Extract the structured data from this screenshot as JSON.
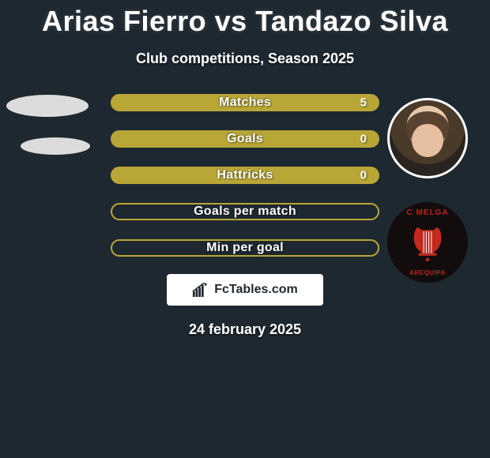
{
  "title": "Arias Fierro vs Tandazo Silva",
  "subtitle": "Club competitions, Season 2025",
  "stats": [
    {
      "label": "Matches",
      "right_value": "5",
      "filled": true
    },
    {
      "label": "Goals",
      "right_value": "0",
      "filled": true
    },
    {
      "label": "Hattricks",
      "right_value": "0",
      "filled": true
    },
    {
      "label": "Goals per match",
      "right_value": "",
      "filled": false
    },
    {
      "label": "Min per goal",
      "right_value": "",
      "filled": false
    }
  ],
  "bar_fill_color": "#b8a637",
  "bar_border_color": "#b8a637",
  "club_badge": {
    "top_text": "C MELGA",
    "bottom_text": "AREQUIPA"
  },
  "brand": "FcTables.com",
  "date": "24 february 2025",
  "background_color": "#1e2830"
}
